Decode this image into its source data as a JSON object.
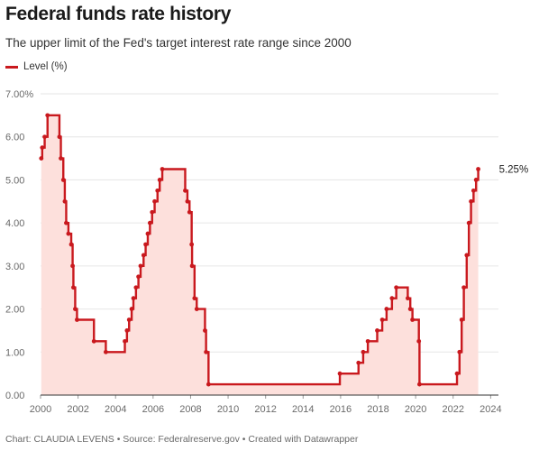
{
  "header": {
    "title": "Federal funds rate history",
    "subtitle": "The upper limit of the Fed's target interest rate range since 2000"
  },
  "legend": {
    "label": "Level (%)"
  },
  "footer": {
    "credit": "Chart: CLAUDIA LEVENS • Source: Federalreserve.gov • Created with Datawrapper"
  },
  "colors": {
    "line": "#c9191e",
    "area": "#fde0dc",
    "grid": "#e6e6e6",
    "axis": "#333333"
  },
  "chart_data": {
    "type": "area",
    "title": "Federal funds rate history",
    "subtitle": "The upper limit of the Fed's target interest rate range since 2000",
    "series": [
      {
        "name": "Level (%)",
        "points": [
          [
            "2000-02-02",
            5.75
          ],
          [
            "2000-03-21",
            6.0
          ],
          [
            "2000-05-16",
            6.5
          ],
          [
            "2001-01-03",
            6.0
          ],
          [
            "2001-01-31",
            5.5
          ],
          [
            "2001-03-20",
            5.0
          ],
          [
            "2001-04-18",
            4.5
          ],
          [
            "2001-05-15",
            4.0
          ],
          [
            "2001-06-27",
            3.75
          ],
          [
            "2001-08-21",
            3.5
          ],
          [
            "2001-09-17",
            3.0
          ],
          [
            "2001-10-02",
            2.5
          ],
          [
            "2001-11-06",
            2.0
          ],
          [
            "2001-12-11",
            1.75
          ],
          [
            "2002-11-06",
            1.25
          ],
          [
            "2003-06-25",
            1.0
          ],
          [
            "2004-06-30",
            1.25
          ],
          [
            "2004-08-10",
            1.5
          ],
          [
            "2004-09-21",
            1.75
          ],
          [
            "2004-11-10",
            2.0
          ],
          [
            "2004-12-14",
            2.25
          ],
          [
            "2005-02-02",
            2.5
          ],
          [
            "2005-03-22",
            2.75
          ],
          [
            "2005-05-03",
            3.0
          ],
          [
            "2005-06-30",
            3.25
          ],
          [
            "2005-08-09",
            3.5
          ],
          [
            "2005-09-20",
            3.75
          ],
          [
            "2005-11-01",
            4.0
          ],
          [
            "2005-12-13",
            4.25
          ],
          [
            "2006-01-31",
            4.5
          ],
          [
            "2006-03-28",
            4.75
          ],
          [
            "2006-05-10",
            5.0
          ],
          [
            "2006-06-29",
            5.25
          ],
          [
            "2007-09-18",
            4.75
          ],
          [
            "2007-10-31",
            4.5
          ],
          [
            "2007-12-11",
            4.25
          ],
          [
            "2008-01-22",
            3.5
          ],
          [
            "2008-01-30",
            3.0
          ],
          [
            "2008-03-18",
            2.25
          ],
          [
            "2008-04-30",
            2.0
          ],
          [
            "2008-10-08",
            1.5
          ],
          [
            "2008-10-29",
            1.0
          ],
          [
            "2008-12-16",
            0.25
          ],
          [
            "2015-12-17",
            0.5
          ],
          [
            "2016-12-15",
            0.75
          ],
          [
            "2017-03-16",
            1.0
          ],
          [
            "2017-06-15",
            1.25
          ],
          [
            "2017-12-14",
            1.5
          ],
          [
            "2018-03-22",
            1.75
          ],
          [
            "2018-06-14",
            2.0
          ],
          [
            "2018-09-27",
            2.25
          ],
          [
            "2018-12-20",
            2.5
          ],
          [
            "2019-08-01",
            2.25
          ],
          [
            "2019-09-19",
            2.0
          ],
          [
            "2019-10-31",
            1.75
          ],
          [
            "2020-03-04",
            1.25
          ],
          [
            "2020-03-16",
            0.25
          ],
          [
            "2022-03-17",
            0.5
          ],
          [
            "2022-05-05",
            1.0
          ],
          [
            "2022-06-16",
            1.75
          ],
          [
            "2022-07-28",
            2.5
          ],
          [
            "2022-09-22",
            3.25
          ],
          [
            "2022-11-03",
            4.0
          ],
          [
            "2022-12-15",
            4.5
          ],
          [
            "2023-02-02",
            4.75
          ],
          [
            "2023-03-23",
            5.0
          ],
          [
            "2023-05-04",
            5.25
          ]
        ]
      }
    ],
    "x_ticks": [
      "2000",
      "2002",
      "2004",
      "2006",
      "2008",
      "2010",
      "2012",
      "2014",
      "2016",
      "2018",
      "2020",
      "2022",
      "2024"
    ],
    "y_ticks": [
      "0.00",
      "1.00",
      "2.00",
      "3.00",
      "4.00",
      "5.00",
      "6.00",
      "7.00%"
    ],
    "xlim": [
      "2000-01-01",
      "2024-06-01"
    ],
    "ylim": [
      0,
      7
    ],
    "end_label": "5.25%",
    "grid": "horizontal",
    "legend_position": "top-left"
  }
}
